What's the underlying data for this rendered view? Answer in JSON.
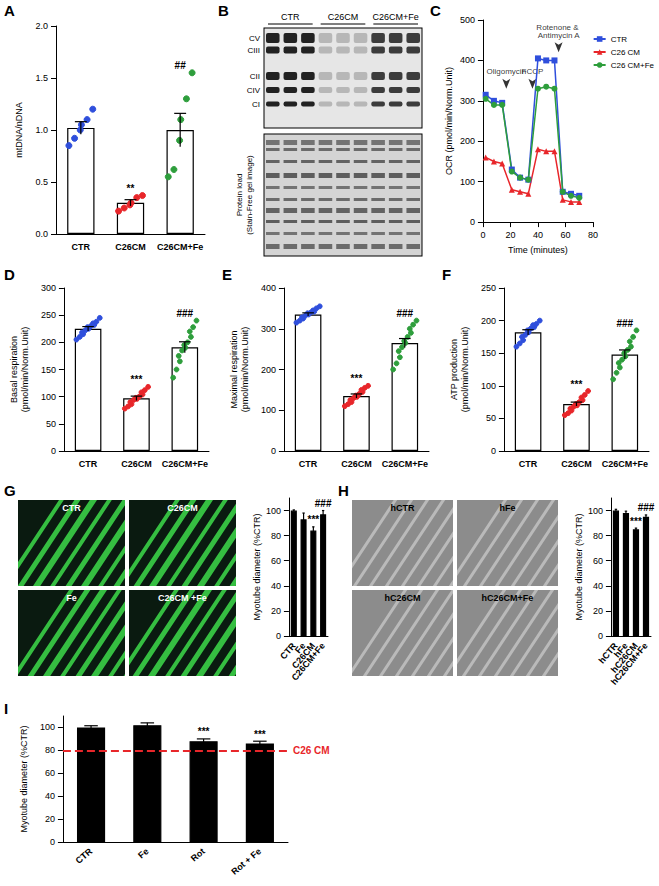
{
  "chart_data": [
    {
      "panel_label": "A",
      "type": "bar",
      "categories": [
        "CTR",
        "C26CM",
        "C26CM+Fe"
      ],
      "values": [
        1.02,
        0.3,
        1.0
      ],
      "errors": [
        0.06,
        0.03,
        0.16
      ],
      "points": [
        [
          0.85,
          0.92,
          1.0,
          1.05,
          1.1,
          1.2
        ],
        [
          0.22,
          0.25,
          0.28,
          0.3,
          0.35,
          0.37
        ],
        [
          0.55,
          0.62,
          0.9,
          1.1,
          1.3,
          1.55
        ]
      ],
      "colors": [
        "#2f4fdc",
        "#e8262a",
        "#2e9e3c"
      ],
      "color": "#ffffff",
      "significance": [
        null,
        "**",
        "##"
      ],
      "ylabel": "mtDNA/nDNA",
      "ylim": [
        0,
        2
      ],
      "yticks": [
        {
          "value": 0,
          "label": "0.0"
        },
        {
          "value": 0.5,
          "label": "0.5"
        },
        {
          "value": 1,
          "label": "1.0"
        },
        {
          "value": 1.5,
          "label": "1.5"
        },
        {
          "value": 2,
          "label": "2.0"
        }
      ]
    },
    {
      "panel_label": "C",
      "type": "line",
      "x": [
        2,
        8,
        14,
        21,
        27,
        33,
        40,
        46,
        52,
        58,
        64,
        70
      ],
      "series": [
        {
          "name": "CTR",
          "color": "#2f4fdc",
          "marker": "square",
          "values": [
            315,
            300,
            295,
            130,
            110,
            105,
            405,
            400,
            400,
            75,
            70,
            65
          ]
        },
        {
          "name": "C26 CM",
          "color": "#e8262a",
          "marker": "triangle",
          "values": [
            160,
            150,
            145,
            80,
            75,
            70,
            180,
            175,
            175,
            55,
            50,
            50
          ]
        },
        {
          "name": "C26 CM+Fe",
          "color": "#2e9e3c",
          "marker": "circle",
          "values": [
            305,
            290,
            290,
            125,
            110,
            105,
            330,
            335,
            330,
            75,
            65,
            60
          ]
        }
      ],
      "annotations": [
        {
          "text": "Oligomycin",
          "x": 17,
          "y": 330
        },
        {
          "text": "FCCP",
          "x": 36,
          "y": 330
        },
        {
          "text": "Rotenone & Antimycin A",
          "x": 55,
          "y": 420
        }
      ],
      "xlabel": "Time (minutes)",
      "ylabel": "OCR (pmol/min/Norm.Unit)",
      "xlim": [
        0,
        80
      ],
      "xticks": [
        0,
        20,
        40,
        60,
        80
      ],
      "ylim": [
        0,
        500
      ],
      "yticks": [
        0,
        100,
        200,
        300,
        400,
        500
      ],
      "legend": "right"
    },
    {
      "panel_label": "D",
      "type": "bar",
      "categories": [
        "CTR",
        "C26CM",
        "C26CM+Fe"
      ],
      "values": [
        225,
        97,
        191
      ],
      "errors": [
        4,
        4,
        10
      ],
      "points": [
        [
          205,
          210,
          215,
          218,
          222,
          225,
          228,
          230,
          232,
          235,
          238,
          245
        ],
        [
          78,
          82,
          86,
          90,
          94,
          96,
          98,
          100,
          104,
          108,
          112,
          118
        ],
        [
          135,
          150,
          165,
          175,
          185,
          190,
          195,
          200,
          210,
          220,
          228,
          240
        ]
      ],
      "colors": [
        "#2f4fdc",
        "#e8262a",
        "#2e9e3c"
      ],
      "color": "#ffffff",
      "significance": [
        null,
        "***",
        "###"
      ],
      "ylabel": "Basal respiration\n(pmol/min/Norm.Unit)",
      "ylim": [
        0,
        300
      ],
      "yticks": [
        0,
        50,
        100,
        150,
        200,
        250,
        300
      ]
    },
    {
      "panel_label": "E",
      "type": "bar",
      "categories": [
        "CTR",
        "C26CM",
        "C26CM+Fe"
      ],
      "values": [
        335,
        135,
        265
      ],
      "errors": [
        4,
        5,
        11
      ],
      "points": [
        [
          315,
          320,
          325,
          328,
          332,
          335,
          338,
          340,
          342,
          345,
          350,
          355
        ],
        [
          110,
          115,
          120,
          125,
          130,
          133,
          136,
          140,
          145,
          150,
          155,
          160
        ],
        [
          200,
          215,
          230,
          245,
          255,
          265,
          270,
          280,
          290,
          300,
          310,
          320
        ]
      ],
      "colors": [
        "#2f4fdc",
        "#e8262a",
        "#2e9e3c"
      ],
      "color": "#ffffff",
      "significance": [
        null,
        "***",
        "###"
      ],
      "ylabel": "Maximal respiration\n(pmol/min/Norm.Unit)",
      "ylim": [
        0,
        400
      ],
      "yticks": [
        0,
        100,
        200,
        300,
        400
      ]
    },
    {
      "panel_label": "F",
      "type": "bar",
      "categories": [
        "CTR",
        "C26CM",
        "C26CM+Fe"
      ],
      "values": [
        182,
        72,
        148
      ],
      "errors": [
        4,
        3,
        7
      ],
      "points": [
        [
          160,
          165,
          170,
          175,
          178,
          182,
          185,
          188,
          190,
          193,
          195,
          200
        ],
        [
          55,
          58,
          62,
          65,
          68,
          70,
          72,
          75,
          78,
          82,
          86,
          92
        ],
        [
          110,
          120,
          128,
          135,
          140,
          145,
          150,
          155,
          160,
          168,
          175,
          185
        ]
      ],
      "colors": [
        "#2f4fdc",
        "#e8262a",
        "#2e9e3c"
      ],
      "color": "#ffffff",
      "significance": [
        null,
        "***",
        "###"
      ],
      "ylabel": "ATP production\n(pmol/min/Norm.Unit)",
      "ylim": [
        0,
        250
      ],
      "yticks": [
        0,
        50,
        100,
        150,
        200,
        250
      ]
    },
    {
      "panel_label": "G",
      "type": "bar",
      "categories": [
        "CTR",
        "Fe",
        "C26CM",
        "C26CM+Fe"
      ],
      "values": [
        100,
        93,
        84,
        97
      ],
      "errors": [
        0.5,
        5,
        3,
        3
      ],
      "color": "#000000",
      "significance": [
        null,
        null,
        "***",
        "###"
      ],
      "ylabel": "Myotube diameter (%CTR)",
      "ylim": [
        0,
        110
      ],
      "yticks": [
        0,
        20,
        40,
        60,
        80,
        100
      ]
    },
    {
      "panel_label": "H",
      "type": "bar",
      "categories": [
        "hCTR",
        "hFe",
        "hC26CM",
        "hC26CM+Fe"
      ],
      "values": [
        100,
        98,
        85,
        95
      ],
      "errors": [
        1,
        1.5,
        1,
        1.5
      ],
      "color": "#000000",
      "significance": [
        null,
        null,
        "***",
        "###"
      ],
      "ylabel": "Myotube diameter (%CTR)",
      "ylim": [
        0,
        110
      ],
      "yticks": [
        0,
        20,
        40,
        60,
        80,
        100
      ]
    },
    {
      "panel_label": "I",
      "type": "bar",
      "categories": [
        "CTR",
        "Fe",
        "Rot",
        "Rot + Fe"
      ],
      "values": [
        100,
        102,
        88,
        86
      ],
      "errors": [
        1.5,
        2,
        2,
        2
      ],
      "color": "#000000",
      "significance": [
        null,
        null,
        "***",
        "***"
      ],
      "ylabel": "Myotube diameter (%CTR)",
      "reference_line": {
        "value": 80,
        "label": "C26 CM",
        "color": "#e8262a"
      },
      "ylim": [
        0,
        110
      ],
      "yticks": [
        0,
        20,
        40,
        60,
        80,
        100
      ]
    }
  ],
  "blot": {
    "panel_label": "B",
    "lanes": [
      "CTR",
      "C26CM",
      "C26CM+Fe"
    ],
    "bands": [
      "CV",
      "CIII",
      "CII",
      "CIV",
      "CI"
    ],
    "loading_label": "Protein load\n(Stain-Free gel image)"
  },
  "micrographs": [
    {
      "panel": "G",
      "labels": [
        "CTR",
        "C26CM",
        "Fe",
        "C26CM +Fe"
      ]
    },
    {
      "panel": "H",
      "labels": [
        "hCTR",
        "hFe",
        "hC26CM",
        "hC26CM+Fe"
      ]
    }
  ]
}
